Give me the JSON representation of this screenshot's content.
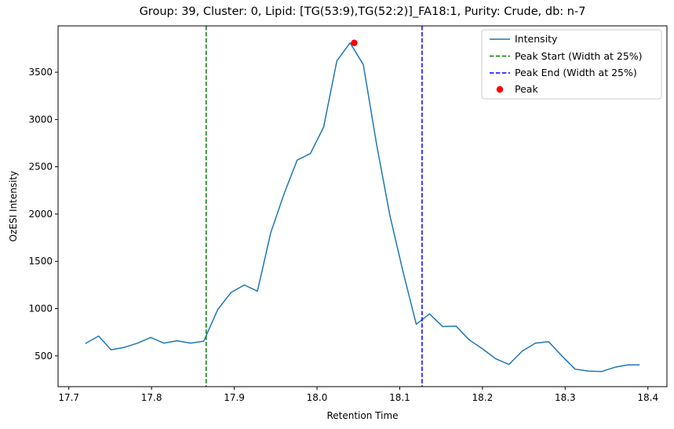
{
  "chart_data": {
    "type": "line",
    "title": "Group: 39, Cluster: 0, Lipid: [TG(53:9),TG(52:2)]_FA18:1, Purity: Crude, db: n-7",
    "xlabel": "Retention Time",
    "ylabel": "OzESI Intensity",
    "xlim": [
      17.687,
      18.423
    ],
    "ylim": [
      175,
      3990
    ],
    "xticks": [
      17.7,
      17.8,
      17.9,
      18.0,
      18.1,
      18.2,
      18.3,
      18.4
    ],
    "xtick_labels": [
      "17.7",
      "17.8",
      "17.9",
      "18.0",
      "18.1",
      "18.2",
      "18.3",
      "18.4"
    ],
    "yticks": [
      500,
      1000,
      1500,
      2000,
      2500,
      3000,
      3500
    ],
    "ytick_labels": [
      "500",
      "1000",
      "1500",
      "2000",
      "2500",
      "3000",
      "3500"
    ],
    "grid": false,
    "legend_position": "top-right",
    "series": [
      {
        "name": "Intensity",
        "color": "#1f77b4",
        "style": "solid",
        "x": [
          17.72,
          17.736,
          17.751,
          17.767,
          17.783,
          17.799,
          17.815,
          17.831,
          17.847,
          17.863,
          17.88,
          17.896,
          17.912,
          17.928,
          17.944,
          17.96,
          17.976,
          17.992,
          18.008,
          18.024,
          18.04,
          18.056,
          18.072,
          18.088,
          18.104,
          18.12,
          18.136,
          18.152,
          18.168,
          18.184,
          18.2,
          18.216,
          18.232,
          18.248,
          18.264,
          18.28,
          18.296,
          18.312,
          18.328,
          18.344,
          18.36,
          18.376,
          18.39
        ],
        "y": [
          630,
          710,
          565,
          590,
          635,
          695,
          635,
          660,
          635,
          655,
          990,
          1170,
          1250,
          1185,
          1800,
          2210,
          2570,
          2640,
          2920,
          3620,
          3810,
          3580,
          2740,
          1990,
          1390,
          835,
          945,
          810,
          815,
          670,
          575,
          470,
          410,
          550,
          635,
          650,
          500,
          360,
          340,
          335,
          380,
          405,
          405
        ]
      },
      {
        "name": "Peak Start (Width at 25%)",
        "color": "#008000",
        "style": "dashed",
        "x_value": 17.866
      },
      {
        "name": "Peak End (Width at 25%)",
        "color": "#0000ff",
        "style": "dashed",
        "x_value": 18.127
      },
      {
        "name": "Peak",
        "color": "#ff0000",
        "style": "marker",
        "x": [
          18.045
        ],
        "y": [
          3810
        ]
      }
    ]
  }
}
